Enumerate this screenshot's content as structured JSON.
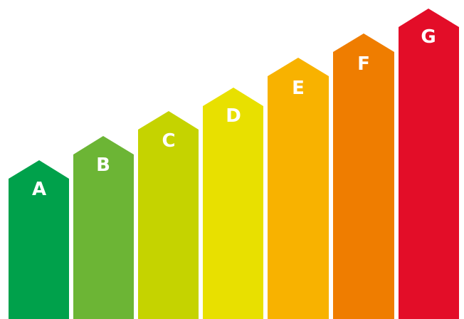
{
  "scale": {
    "classes": [
      {
        "letter": "A",
        "color": "#00A14B"
      },
      {
        "letter": "B",
        "color": "#6CB535"
      },
      {
        "letter": "C",
        "color": "#C5D300"
      },
      {
        "letter": "D",
        "color": "#E8E000"
      },
      {
        "letter": "E",
        "color": "#F8B200"
      },
      {
        "letter": "F",
        "color": "#EF7D00"
      },
      {
        "letter": "G",
        "color": "#E30D28"
      }
    ]
  }
}
